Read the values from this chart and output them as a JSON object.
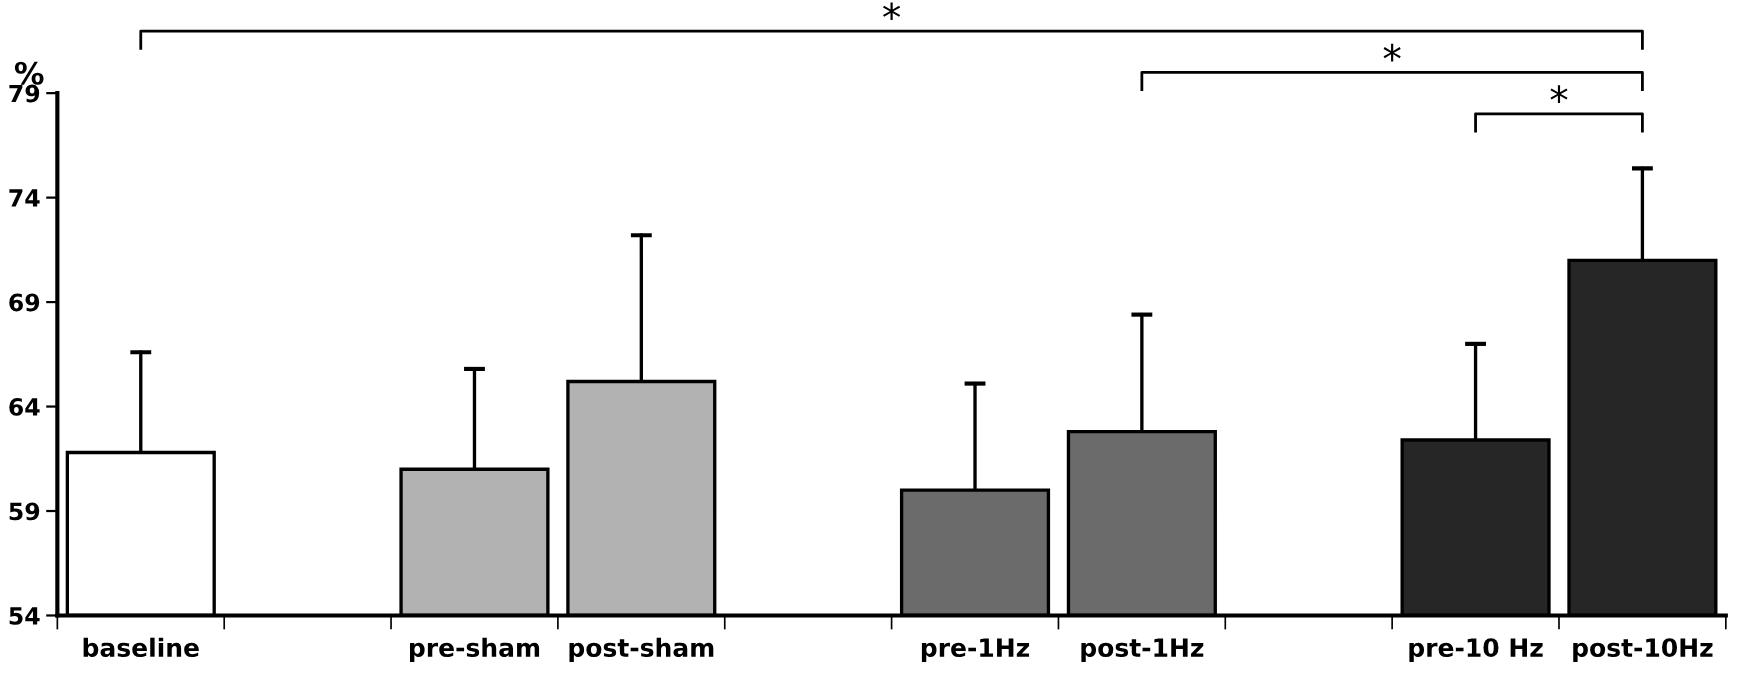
{
  "chart_data": {
    "type": "bar",
    "categories": [
      "baseline",
      null,
      "pre-sham",
      "post-sham",
      null,
      "pre-1Hz",
      "post-1Hz",
      null,
      "pre-10 Hz",
      "post-10Hz"
    ],
    "values": [
      61.8,
      null,
      61.0,
      65.2,
      null,
      60.0,
      62.8,
      null,
      62.4,
      71.0
    ],
    "colors": [
      "#ffffff",
      null,
      "#b2b2b2",
      "#b2b2b2",
      null,
      "#6b6b6b",
      "#6b6b6b",
      null,
      "#262626",
      "#262626"
    ],
    "errors": [
      [
        61.8,
        66.6
      ],
      null,
      [
        61.0,
        65.8
      ],
      [
        65.2,
        72.2
      ],
      null,
      [
        60.0,
        65.1
      ],
      [
        62.8,
        68.4
      ],
      null,
      [
        62.4,
        67.0
      ],
      [
        71.0,
        75.4
      ]
    ],
    "ylabel": "%",
    "ylim": [
      54,
      79
    ],
    "yticks": [
      54,
      59,
      64,
      69,
      74,
      79
    ],
    "annotations": [
      "*",
      "*",
      "*"
    ],
    "grid": false
  }
}
